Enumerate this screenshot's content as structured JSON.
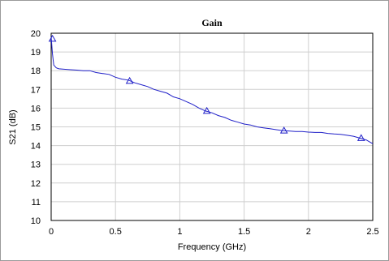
{
  "chart_data": {
    "type": "line",
    "title": "Gain",
    "xlabel": "Frequency (GHz)",
    "ylabel": "S21 (dB)",
    "xlim": [
      0,
      2.5
    ],
    "ylim": [
      10,
      20
    ],
    "x_ticks": [
      0,
      0.5,
      1,
      1.5,
      2,
      2.5
    ],
    "x_tick_labels": [
      "0",
      "0.5",
      "1",
      "1.5",
      "2",
      "2.5"
    ],
    "y_ticks": [
      10,
      11,
      12,
      13,
      14,
      15,
      16,
      17,
      18,
      19,
      20
    ],
    "y_tick_labels": [
      "10",
      "11",
      "12",
      "13",
      "14",
      "15",
      "16",
      "17",
      "18",
      "19",
      "20"
    ],
    "grid": true,
    "legend": "none",
    "line_color": "#1f1fc8",
    "series": [
      {
        "marker": "triangle",
        "x": [
          0.0,
          0.01,
          0.02,
          0.04,
          0.06,
          0.1,
          0.15,
          0.2,
          0.25,
          0.3,
          0.35,
          0.4,
          0.45,
          0.5,
          0.55,
          0.6,
          0.65,
          0.7,
          0.75,
          0.8,
          0.85,
          0.9,
          0.95,
          1.0,
          1.05,
          1.1,
          1.15,
          1.2,
          1.25,
          1.3,
          1.35,
          1.4,
          1.45,
          1.5,
          1.55,
          1.6,
          1.65,
          1.7,
          1.75,
          1.8,
          1.85,
          1.9,
          1.95,
          2.0,
          2.05,
          2.1,
          2.15,
          2.2,
          2.25,
          2.3,
          2.35,
          2.4,
          2.45,
          2.5
        ],
        "y": [
          19.8,
          18.9,
          18.3,
          18.15,
          18.1,
          18.08,
          18.05,
          18.03,
          18.0,
          18.0,
          17.9,
          17.85,
          17.8,
          17.65,
          17.55,
          17.5,
          17.35,
          17.25,
          17.15,
          17.0,
          16.9,
          16.8,
          16.6,
          16.5,
          16.35,
          16.2,
          16.0,
          15.85,
          15.75,
          15.6,
          15.5,
          15.35,
          15.25,
          15.15,
          15.1,
          15.0,
          14.95,
          14.9,
          14.85,
          14.8,
          14.78,
          14.75,
          14.75,
          14.72,
          14.7,
          14.7,
          14.65,
          14.62,
          14.6,
          14.55,
          14.5,
          14.4,
          14.3,
          14.1
        ]
      }
    ],
    "markers": {
      "x": [
        0.01,
        0.61,
        1.21,
        1.81,
        2.41
      ],
      "y": [
        19.7,
        17.45,
        15.85,
        14.8,
        14.4
      ]
    }
  }
}
